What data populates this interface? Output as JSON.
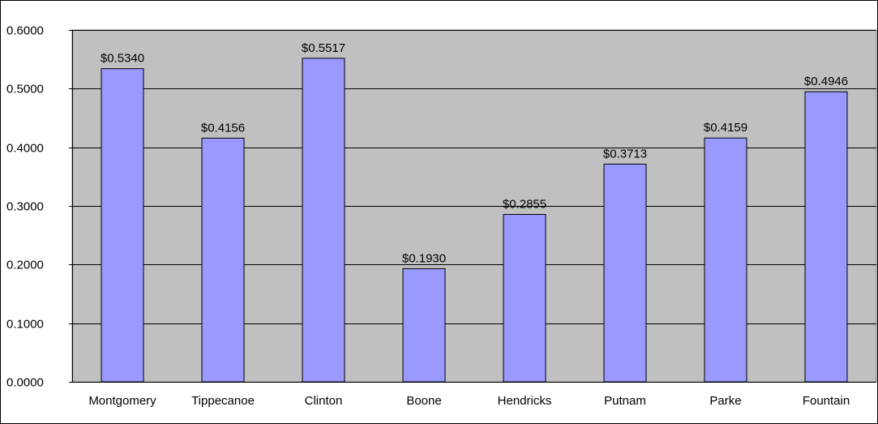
{
  "chart_data": {
    "type": "bar",
    "categories": [
      "Montgomery",
      "Tippecanoe",
      "Clinton",
      "Boone",
      "Hendricks",
      "Putnam",
      "Parke",
      "Fountain"
    ],
    "values": [
      0.534,
      0.4156,
      0.5517,
      0.193,
      0.2855,
      0.3713,
      0.4159,
      0.4946
    ],
    "data_labels": [
      "$0.5340",
      "$0.4156",
      "$0.5517",
      "$0.1930",
      "$0.2855",
      "$0.3713",
      "$0.4159",
      "$0.4946"
    ],
    "y_ticks": [
      "0.0000",
      "0.1000",
      "0.2000",
      "0.3000",
      "0.4000",
      "0.5000",
      "0.6000"
    ],
    "ylim": [
      0,
      0.6
    ],
    "grid": true,
    "legend": false,
    "plot_background": "#c0c0c0",
    "bar_color": "#9999ff",
    "bar_border": "#000000"
  }
}
